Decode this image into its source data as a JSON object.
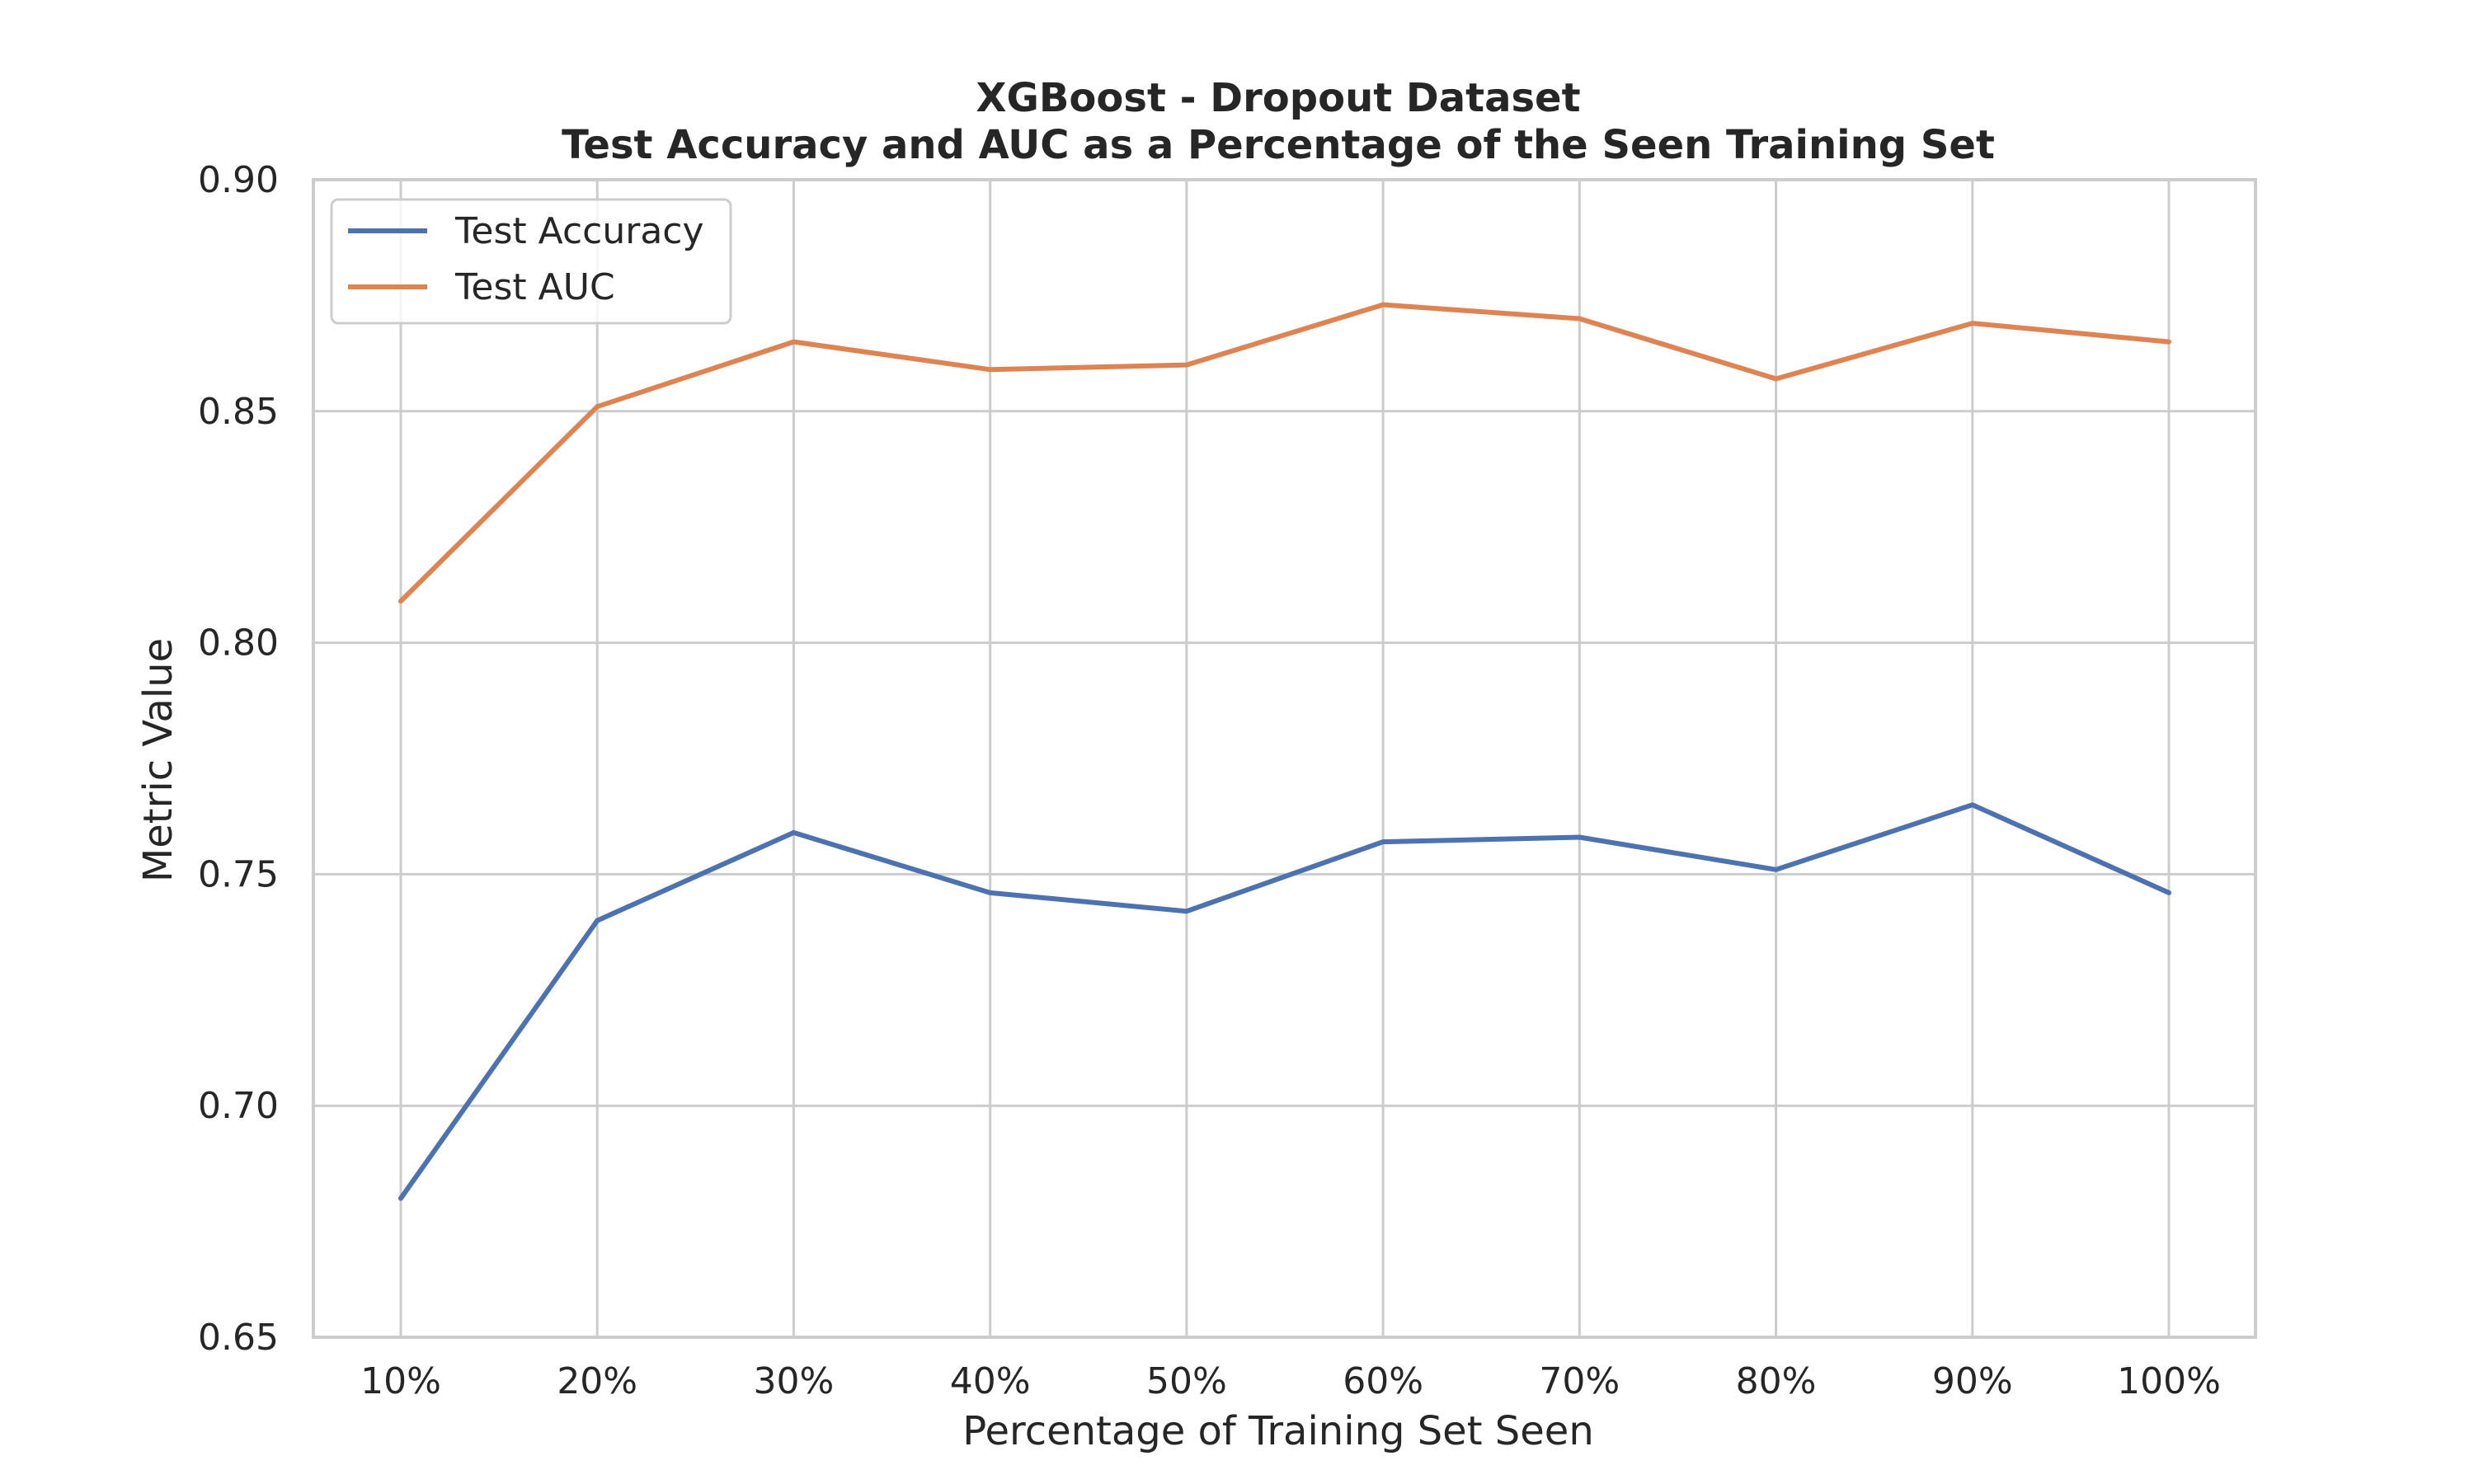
{
  "chart_data": {
    "type": "line",
    "title_line1": "XGBoost - Dropout Dataset",
    "title_line2": "Test Accuracy and AUC as a Percentage of the Seen Training Set",
    "xlabel": "Percentage of Training Set Seen",
    "ylabel": "Metric Value",
    "categories": [
      "10%",
      "20%",
      "30%",
      "40%",
      "50%",
      "60%",
      "70%",
      "80%",
      "90%",
      "100%"
    ],
    "ylim": [
      0.65,
      0.9
    ],
    "yticks": [
      "0.65",
      "0.70",
      "0.75",
      "0.80",
      "0.85",
      "0.90"
    ],
    "ytick_values": [
      0.65,
      0.7,
      0.75,
      0.8,
      0.85,
      0.9
    ],
    "grid": true,
    "legend_position": "top-left",
    "series": [
      {
        "name": "Test Accuracy",
        "color": "#4c72b0",
        "values": [
          0.68,
          0.74,
          0.759,
          0.746,
          0.742,
          0.757,
          0.758,
          0.751,
          0.765,
          0.746
        ]
      },
      {
        "name": "Test AUC",
        "color": "#dd8452",
        "values": [
          0.809,
          0.851,
          0.865,
          0.859,
          0.86,
          0.873,
          0.87,
          0.857,
          0.869,
          0.865
        ]
      }
    ]
  }
}
